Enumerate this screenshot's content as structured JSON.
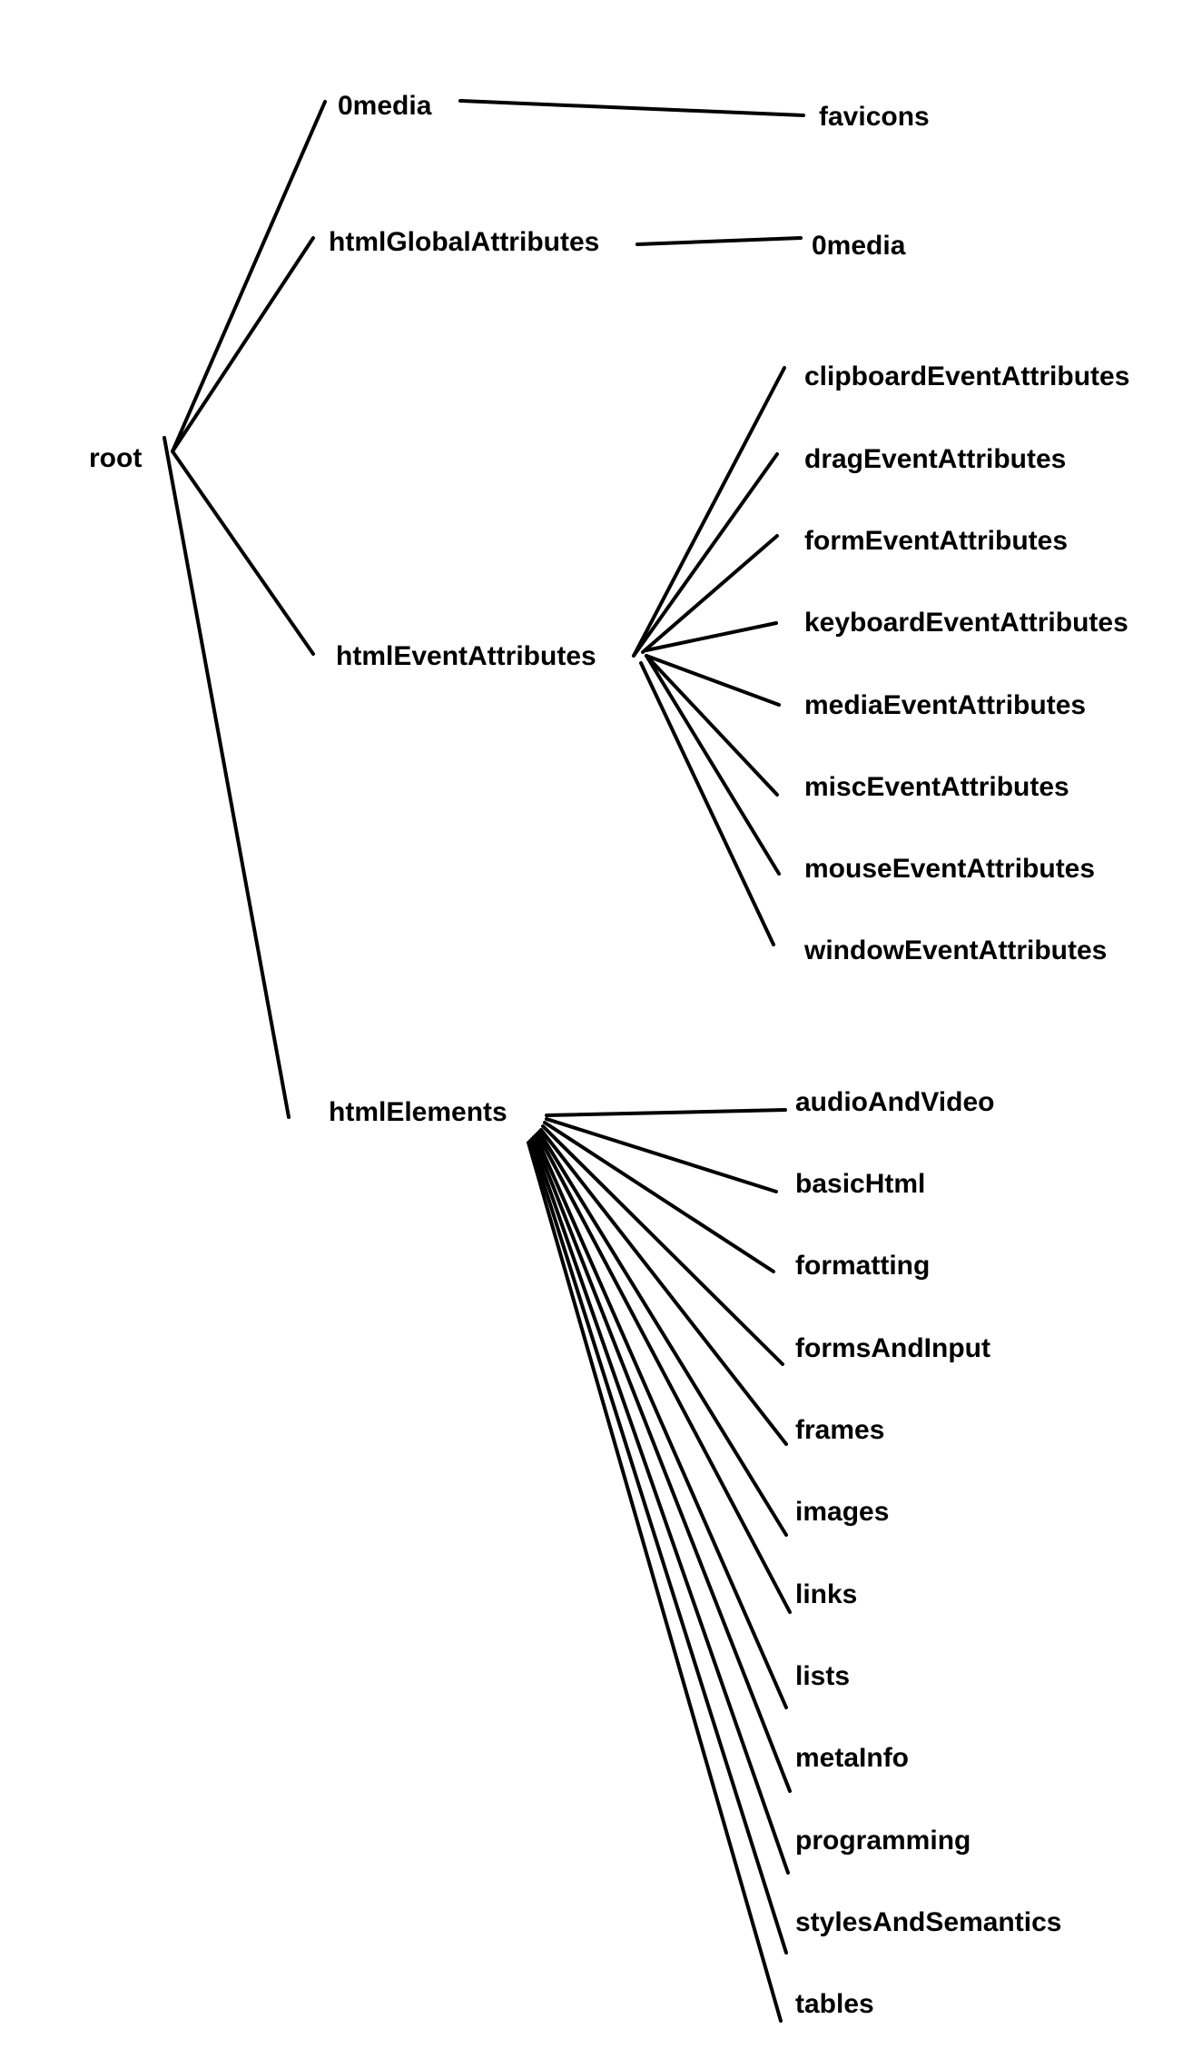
{
  "diagram": {
    "type": "tree",
    "colors": {
      "background": "#ffffff",
      "line": "#000000",
      "text": "#000000"
    },
    "root": {
      "label": "root",
      "children": [
        {
          "label": "0media",
          "children": [
            {
              "label": "favicons"
            }
          ]
        },
        {
          "label": "htmlGlobalAttributes",
          "children": [
            {
              "label": "0media"
            }
          ]
        },
        {
          "label": "htmlEventAttributes",
          "children": [
            {
              "label": "clipboardEventAttributes"
            },
            {
              "label": "dragEventAttributes"
            },
            {
              "label": "formEventAttributes"
            },
            {
              "label": "keyboardEventAttributes"
            },
            {
              "label": "mediaEventAttributes"
            },
            {
              "label": "miscEventAttributes"
            },
            {
              "label": "mouseEventAttributes"
            },
            {
              "label": "windowEventAttributes"
            }
          ]
        },
        {
          "label": "htmlElements",
          "children": [
            {
              "label": "audioAndVideo"
            },
            {
              "label": "basicHtml"
            },
            {
              "label": "formatting"
            },
            {
              "label": "formsAndInput"
            },
            {
              "label": "frames"
            },
            {
              "label": "images"
            },
            {
              "label": "links"
            },
            {
              "label": "lists"
            },
            {
              "label": "metaInfo"
            },
            {
              "label": "programming"
            },
            {
              "label": "stylesAndSemantics"
            },
            {
              "label": "tables"
            }
          ]
        }
      ]
    }
  }
}
